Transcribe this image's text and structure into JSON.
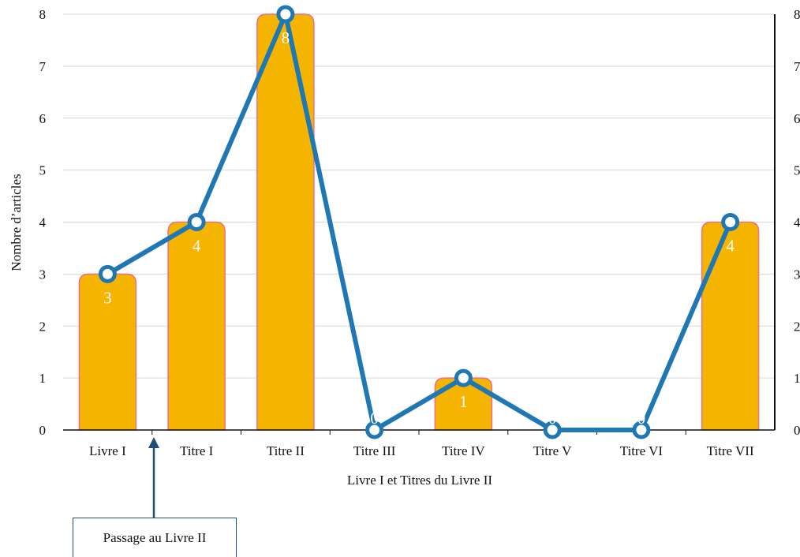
{
  "chart_data": {
    "type": "bar",
    "categories": [
      "Livre I",
      "Titre I",
      "Titre II",
      "Titre III",
      "Titre IV",
      "Titre V",
      "Titre VI",
      "Titre VII"
    ],
    "series": [
      {
        "type": "bar",
        "values": [
          3,
          4,
          8,
          0,
          1,
          0,
          0,
          4
        ]
      },
      {
        "type": "line",
        "values": [
          3,
          4,
          8,
          0,
          1,
          0,
          0,
          4
        ]
      }
    ],
    "data_labels": [
      "3",
      "4",
      "8",
      "0",
      "1",
      "0",
      "0",
      "4"
    ],
    "xlabel": "Livre I et Titres du Livre II",
    "ylabel": "Nombre d’articles",
    "ylim": [
      0,
      8
    ],
    "yticks": [
      "0",
      "1",
      "2",
      "3",
      "4",
      "5",
      "6",
      "7",
      "8"
    ],
    "y2ticks": [
      "0",
      "1",
      "2",
      "3",
      "4",
      "5",
      "6",
      "7",
      "8"
    ],
    "grid": true,
    "annotation": "Passage au Livre II",
    "colors": {
      "bar": "#f5b400",
      "bar_edge": "#e8708a",
      "line": "#1f77b4",
      "grid": "#d9d9d9",
      "arrow": "#1f4e79"
    }
  }
}
